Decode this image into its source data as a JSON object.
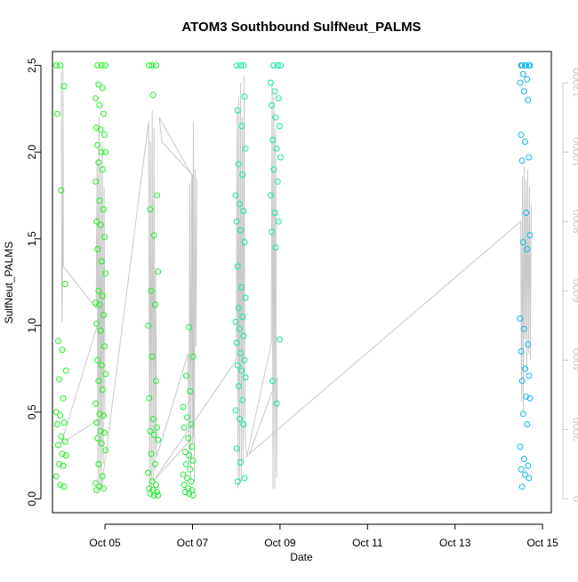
{
  "chart_data": {
    "type": "scatter",
    "title": "ATOM3 Southbound SulfNeut_PALMS",
    "xlabel": "Date",
    "ylabel": "SulfNeut_PALMS",
    "x_axis": {
      "range_days": [
        3.8,
        15.2
      ],
      "ticks": [
        {
          "day": 5,
          "label": "Oct 05"
        },
        {
          "day": 7,
          "label": "Oct 07"
        },
        {
          "day": 9,
          "label": "Oct 09"
        },
        {
          "day": 11,
          "label": "Oct 11"
        },
        {
          "day": 13,
          "label": "Oct 13"
        },
        {
          "day": 15,
          "label": "Oct 15"
        }
      ]
    },
    "y_axis_left": {
      "range": [
        -0.08,
        2.58
      ],
      "ticks": [
        0.0,
        0.5,
        1.0,
        1.5,
        2.0,
        2.5
      ],
      "tick_labels": [
        "0.0",
        "0.5",
        "1.0",
        "1.5",
        "2.0",
        "2.5"
      ]
    },
    "y_axis_right": {
      "range": [
        -400,
        12900
      ],
      "ticks": [
        0,
        2000,
        4000,
        6000,
        8000,
        10000,
        12000
      ],
      "tick_labels": [
        "0",
        "2000",
        "4000",
        "6000",
        "8000",
        "10000",
        "12000"
      ],
      "color": "#c8c8c8"
    },
    "grid": false,
    "legend": "none",
    "colors": {
      "points_early": "#00ee00",
      "points_mid": "#00e6a0",
      "points_late": "#00b4e6",
      "altitude_line": "#c8c8c8"
    },
    "point_groups": [
      {
        "day": 4.0,
        "color": "#20f020",
        "values": [
          2.5,
          2.5,
          2.38,
          2.22,
          1.78,
          1.24,
          0.91,
          0.86,
          0.74,
          0.69,
          0.58,
          0.5,
          0.48,
          0.44,
          0.43,
          0.36,
          0.33,
          0.31,
          0.26,
          0.25,
          0.2,
          0.19,
          0.13,
          0.08,
          0.07
        ]
      },
      {
        "day": 4.9,
        "color": "#20f020",
        "values": [
          2.5,
          2.5,
          2.5,
          2.39,
          2.37,
          2.31,
          2.27,
          2.22,
          2.14,
          2.13,
          2.1,
          2.04,
          2.0,
          2.0,
          1.94,
          1.9,
          1.83,
          1.72,
          1.67,
          1.6,
          1.58,
          1.51,
          1.44,
          1.37,
          1.3,
          1.2,
          1.17,
          1.13,
          1.12,
          1.06,
          1.01,
          0.97,
          0.88,
          0.8,
          0.77,
          0.72,
          0.68,
          0.63,
          0.55,
          0.49,
          0.48,
          0.44,
          0.39,
          0.38,
          0.35,
          0.32,
          0.28,
          0.2,
          0.13,
          0.09,
          0.07,
          0.06,
          0.05
        ]
      },
      {
        "day": 6.1,
        "color": "#20ee30",
        "values": [
          2.5,
          2.5,
          2.5,
          2.33,
          1.75,
          1.67,
          1.52,
          1.31,
          1.2,
          1.12,
          1.0,
          0.82,
          0.68,
          0.58,
          0.46,
          0.41,
          0.39,
          0.37,
          0.34,
          0.26,
          0.2,
          0.15,
          0.1,
          0.08,
          0.06,
          0.05,
          0.04,
          0.03,
          0.02,
          0.02
        ]
      },
      {
        "day": 6.9,
        "color": "#20ec40",
        "values": [
          0.99,
          0.82,
          0.71,
          0.62,
          0.53,
          0.47,
          0.43,
          0.41,
          0.35,
          0.3,
          0.27,
          0.25,
          0.22,
          0.2,
          0.17,
          0.14,
          0.12,
          0.1,
          0.08,
          0.06,
          0.05,
          0.04,
          0.03,
          0.02
        ]
      },
      {
        "day": 8.1,
        "color": "#10e8a0",
        "values": [
          2.5,
          2.5,
          2.5,
          2.32,
          2.24,
          2.15,
          2.02,
          1.93,
          1.87,
          1.75,
          1.7,
          1.66,
          1.6,
          1.55,
          1.48,
          1.34,
          1.22,
          1.16,
          1.1,
          1.05,
          1.02,
          0.98,
          0.94,
          0.9,
          0.84,
          0.8,
          0.77,
          0.74,
          0.7,
          0.65,
          0.57,
          0.51,
          0.46,
          0.43,
          0.29,
          0.21,
          0.12,
          0.1
        ]
      },
      {
        "day": 8.9,
        "color": "#10e6b0",
        "values": [
          2.5,
          2.5,
          2.5,
          2.4,
          2.35,
          2.31,
          2.27,
          2.2,
          2.15,
          2.07,
          2.02,
          1.97,
          1.9,
          1.83,
          1.75,
          1.65,
          1.6,
          1.54,
          1.45,
          0.92,
          0.68,
          0.55
        ]
      },
      {
        "day": 14.6,
        "color": "#10b8e6",
        "values": [
          2.5,
          2.5,
          2.5,
          2.5,
          2.5,
          2.5,
          2.45,
          2.42,
          2.4,
          2.35,
          2.3,
          2.1,
          2.06,
          1.97,
          1.95,
          1.65,
          1.52,
          1.48,
          1.44,
          1.04,
          0.98,
          0.89,
          0.85,
          0.75,
          0.71,
          0.68,
          0.59,
          0.58,
          0.49,
          0.43,
          0.3,
          0.23,
          0.19,
          0.17,
          0.14,
          0.12,
          0.07
        ]
      }
    ],
    "altitude_series": {
      "name": "",
      "axis": "right",
      "path": [
        [
          4.0,
          12300
        ],
        [
          4.01,
          6300
        ],
        [
          4.02,
          5100
        ],
        [
          4.03,
          7000
        ],
        [
          4.04,
          12500
        ],
        [
          4.05,
          6700
        ],
        [
          4.8,
          5500
        ],
        [
          4.82,
          9800
        ],
        [
          4.84,
          400
        ],
        [
          4.86,
          11000
        ],
        [
          4.88,
          300
        ],
        [
          4.9,
          9600
        ],
        [
          4.92,
          300
        ],
        [
          4.94,
          10300
        ],
        [
          4.96,
          1000
        ],
        [
          4.98,
          9000
        ],
        [
          5.0,
          2400
        ],
        [
          4.0,
          1600
        ],
        [
          4.9,
          5300
        ],
        [
          4.92,
          300
        ],
        [
          6.0,
          10900
        ],
        [
          6.02,
          200
        ],
        [
          6.04,
          10300
        ],
        [
          6.06,
          300
        ],
        [
          6.08,
          11200
        ],
        [
          6.1,
          500
        ],
        [
          6.12,
          10700
        ],
        [
          6.14,
          800
        ],
        [
          6.16,
          6600
        ],
        [
          6.18,
          1200
        ],
        [
          6.9,
          4200
        ],
        [
          6.92,
          1000
        ],
        [
          6.94,
          9100
        ],
        [
          6.96,
          500
        ],
        [
          6.98,
          9300
        ],
        [
          7.0,
          1600
        ],
        [
          7.02,
          10900
        ],
        [
          7.04,
          500
        ],
        [
          7.06,
          9500
        ],
        [
          7.08,
          4400
        ],
        [
          7.1,
          9200
        ],
        [
          6.3,
          10300
        ],
        [
          6.24,
          11000
        ],
        [
          7.0,
          9300
        ],
        [
          7.02,
          1800
        ],
        [
          6.1,
          500
        ],
        [
          8.0,
          4000
        ],
        [
          8.02,
          11300
        ],
        [
          8.04,
          300
        ],
        [
          8.06,
          11600
        ],
        [
          8.08,
          400
        ],
        [
          8.1,
          12000
        ],
        [
          8.12,
          500
        ],
        [
          8.14,
          11000
        ],
        [
          8.16,
          1100
        ],
        [
          8.18,
          12200
        ],
        [
          8.2,
          2200
        ],
        [
          8.22,
          1500
        ],
        [
          8.24,
          1200
        ],
        [
          8.8,
          4500
        ],
        [
          8.82,
          12000
        ],
        [
          8.84,
          300
        ],
        [
          8.86,
          11600
        ],
        [
          8.88,
          300
        ],
        [
          8.9,
          10700
        ],
        [
          8.92,
          600
        ],
        [
          8.94,
          3500
        ],
        [
          8.3,
          1300
        ],
        [
          14.5,
          8000
        ],
        [
          14.52,
          2800
        ],
        [
          14.54,
          9300
        ],
        [
          14.56,
          2500
        ],
        [
          14.58,
          9600
        ],
        [
          14.6,
          4600
        ],
        [
          14.62,
          9200
        ],
        [
          14.64,
          3700
        ],
        [
          14.66,
          9500
        ],
        [
          14.68,
          4200
        ],
        [
          14.7,
          9000
        ],
        [
          14.72,
          4000
        ],
        [
          14.74,
          8500
        ]
      ]
    }
  }
}
